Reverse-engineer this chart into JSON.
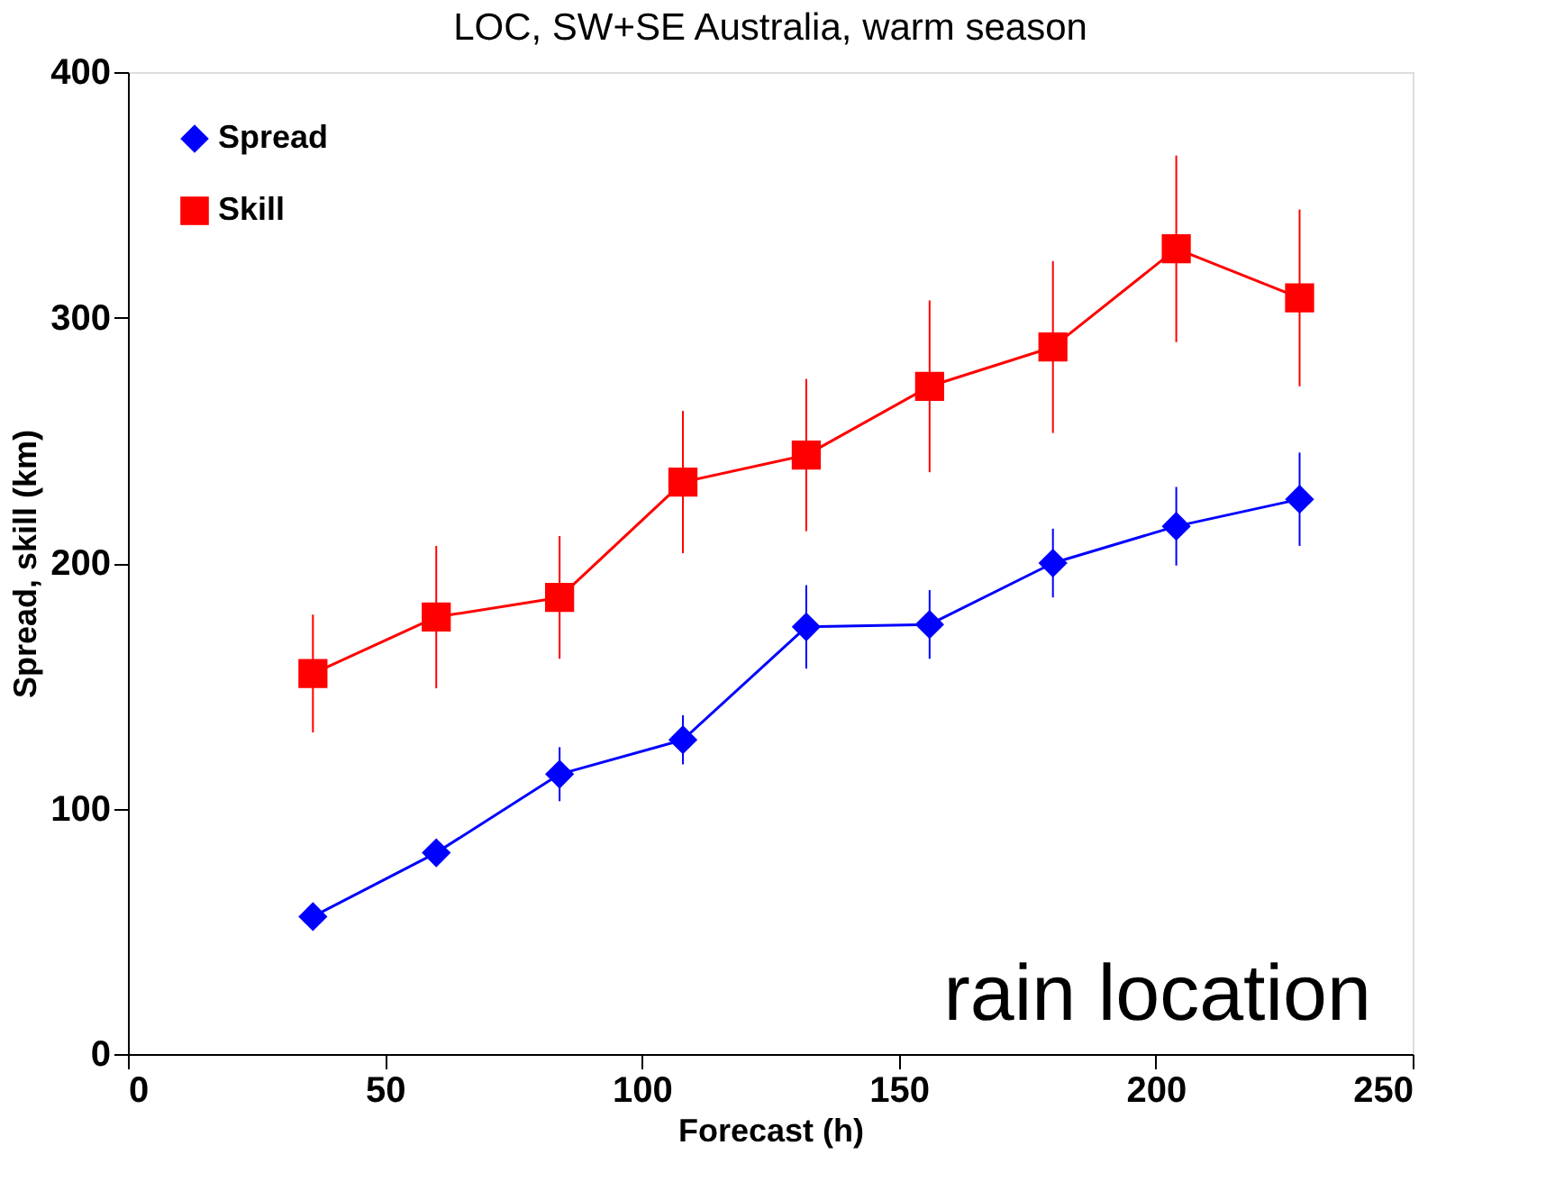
{
  "chart_data": {
    "type": "line",
    "title": "LOC,  SW+SE Australia, warm season",
    "xlabel": "Forecast (h)",
    "ylabel": "Spread, skill  (km)",
    "x": [
      36,
      60,
      84,
      108,
      132,
      156,
      180,
      204,
      228
    ],
    "series": [
      {
        "name": "Spread",
        "color": "#0000ff",
        "marker": "diamond",
        "values": [
          56,
          82,
          114,
          128,
          174,
          175,
          200,
          215,
          226
        ],
        "errors": [
          null,
          null,
          11,
          10,
          17,
          14,
          14,
          16,
          19
        ]
      },
      {
        "name": "Skill",
        "color": "#ff0000",
        "marker": "square",
        "values": [
          155,
          178,
          186,
          233,
          244,
          272,
          288,
          328,
          308
        ],
        "errors": [
          24,
          29,
          25,
          29,
          31,
          35,
          35,
          38,
          36
        ]
      }
    ],
    "xlim": [
      0,
      250
    ],
    "xticks": [
      0,
      50,
      100,
      150,
      200,
      250
    ],
    "ylim": [
      0,
      400
    ],
    "yticks": [
      0,
      100,
      200,
      300,
      400
    ],
    "grid": false,
    "legend": "top left",
    "annotations": [
      "rain location"
    ]
  }
}
